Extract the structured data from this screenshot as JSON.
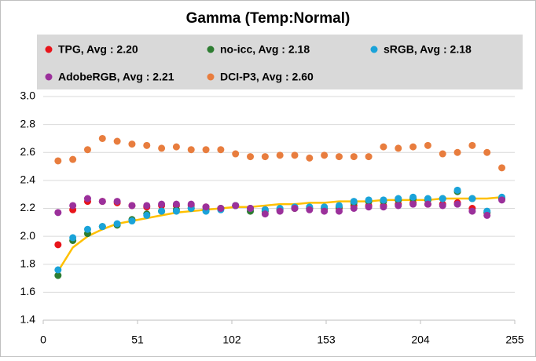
{
  "chart_data": {
    "type": "scatter",
    "title": "Gamma (Temp:Normal)",
    "x": [
      8,
      16,
      24,
      32,
      40,
      48,
      56,
      64,
      72,
      80,
      88,
      96,
      104,
      112,
      120,
      128,
      136,
      144,
      152,
      160,
      168,
      176,
      184,
      192,
      200,
      208,
      216,
      224,
      232,
      240,
      248
    ],
    "series": [
      {
        "name": "TPG, Avg : 2.20",
        "color": "#e8151b",
        "values": [
          1.94,
          2.19,
          2.25,
          2.25,
          2.24,
          2.22,
          2.21,
          2.22,
          2.22,
          2.22,
          2.21,
          2.2,
          2.22,
          2.2,
          2.19,
          2.19,
          2.2,
          2.2,
          2.2,
          2.2,
          2.22,
          2.22,
          2.22,
          2.23,
          2.24,
          2.23,
          2.23,
          2.24,
          2.2,
          2.17,
          2.27
        ]
      },
      {
        "name": "no-icc, Avg : 2.18",
        "color": "#2e7d32",
        "values": [
          1.72,
          1.97,
          2.02,
          2.07,
          2.08,
          2.12,
          2.16,
          2.18,
          2.19,
          2.2,
          2.19,
          2.2,
          2.22,
          2.18,
          2.18,
          2.19,
          2.2,
          2.2,
          2.2,
          2.21,
          2.24,
          2.25,
          2.25,
          2.26,
          2.27,
          2.26,
          2.27,
          2.32,
          2.27,
          2.17,
          2.27
        ]
      },
      {
        "name": "sRGB, Avg : 2.18",
        "color": "#1aa3d9",
        "values": [
          1.76,
          1.99,
          2.05,
          2.07,
          2.09,
          2.11,
          2.15,
          2.18,
          2.18,
          2.2,
          2.18,
          2.19,
          2.22,
          2.2,
          2.19,
          2.2,
          2.21,
          2.21,
          2.21,
          2.22,
          2.25,
          2.26,
          2.26,
          2.27,
          2.28,
          2.27,
          2.27,
          2.33,
          2.27,
          2.18,
          2.28
        ]
      },
      {
        "name": "AdobeRGB, Avg : 2.21",
        "color": "#9b309b",
        "values": [
          2.17,
          2.22,
          2.27,
          2.25,
          2.25,
          2.22,
          2.22,
          2.23,
          2.23,
          2.23,
          2.21,
          2.2,
          2.22,
          2.2,
          2.16,
          2.18,
          2.2,
          2.19,
          2.18,
          2.18,
          2.2,
          2.21,
          2.21,
          2.22,
          2.23,
          2.23,
          2.22,
          2.23,
          2.18,
          2.15,
          2.26
        ]
      },
      {
        "name": "DCI-P3, Avg : 2.60",
        "color": "#e87d3e",
        "values": [
          2.54,
          2.55,
          2.62,
          2.7,
          2.68,
          2.66,
          2.65,
          2.63,
          2.64,
          2.62,
          2.62,
          2.62,
          2.59,
          2.57,
          2.57,
          2.58,
          2.58,
          2.56,
          2.58,
          2.57,
          2.57,
          2.57,
          2.64,
          2.63,
          2.64,
          2.65,
          2.59,
          2.6,
          2.65,
          2.6,
          2.49
        ]
      },
      {
        "color": "#ffc000",
        "line": true,
        "values": [
          1.75,
          1.92,
          2.0,
          2.05,
          2.09,
          2.11,
          2.13,
          2.15,
          2.17,
          2.18,
          2.19,
          2.2,
          2.21,
          2.21,
          2.22,
          2.23,
          2.23,
          2.24,
          2.24,
          2.25,
          2.25,
          2.25,
          2.26,
          2.26,
          2.26,
          2.26,
          2.27,
          2.27,
          2.27,
          2.27,
          2.28
        ]
      }
    ],
    "xlim": [
      0,
      255
    ],
    "xticks": [
      0,
      51,
      102,
      153,
      204,
      255
    ],
    "ylim": [
      1.4,
      3.0
    ],
    "yticks": [
      1.4,
      1.6,
      1.8,
      {
        "value": 2.0,
        "label": "2.0"
      },
      2.2,
      2.4,
      2.6,
      2.8,
      {
        "value": 3.0,
        "label": "3.0"
      }
    ],
    "grid": true
  }
}
